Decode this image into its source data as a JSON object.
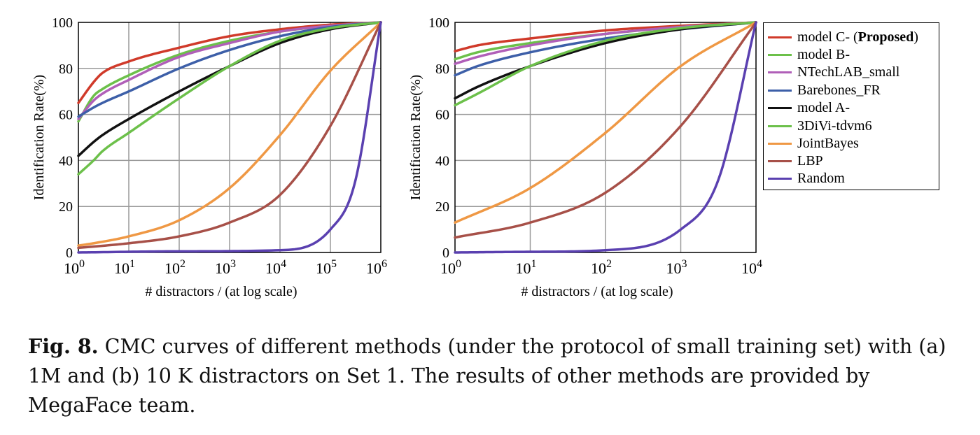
{
  "chart_data": [
    {
      "type": "line",
      "xscale": "log",
      "xlabel": "# distractors / (at log scale)",
      "ylabel": "Identification Rate(%)",
      "xlim": [
        1,
        1000000
      ],
      "ylim": [
        0,
        100
      ],
      "xticks": [
        "10^0",
        "10^1",
        "10^2",
        "10^3",
        "10^4",
        "10^5",
        "10^6"
      ],
      "yticks": [
        "0",
        "20",
        "40",
        "60",
        "80",
        "100"
      ],
      "grid": true,
      "series": [
        {
          "name": "model C- (Proposed)",
          "color": "#d03a2a",
          "points": [
            [
              1,
              65
            ],
            [
              2,
              74
            ],
            [
              3,
              78
            ],
            [
              10,
              83
            ],
            [
              100,
              89
            ],
            [
              1000,
              94
            ],
            [
              10000,
              97
            ],
            [
              100000,
              99
            ],
            [
              1000000,
              100
            ]
          ]
        },
        {
          "name": "model B-",
          "color": "#6cc04a",
          "points": [
            [
              1,
              57
            ],
            [
              2,
              68
            ],
            [
              3,
              71
            ],
            [
              10,
              77
            ],
            [
              100,
              86
            ],
            [
              1000,
              92
            ],
            [
              10000,
              96
            ],
            [
              100000,
              98.5
            ],
            [
              1000000,
              100
            ]
          ]
        },
        {
          "name": "NTechLAB_small",
          "color": "#b05fb8",
          "points": [
            [
              1,
              58
            ],
            [
              2,
              66
            ],
            [
              3,
              69
            ],
            [
              10,
              75
            ],
            [
              100,
              85
            ],
            [
              1000,
              91
            ],
            [
              10000,
              96
            ],
            [
              100000,
              98.5
            ],
            [
              1000000,
              100
            ]
          ]
        },
        {
          "name": "Barebones_FR",
          "color": "#3d5fa8",
          "points": [
            [
              1,
              59
            ],
            [
              2,
              63
            ],
            [
              3,
              65
            ],
            [
              10,
              70
            ],
            [
              100,
              80
            ],
            [
              1000,
              88
            ],
            [
              10000,
              94
            ],
            [
              100000,
              98
            ],
            [
              1000000,
              100
            ]
          ]
        },
        {
          "name": "model A-",
          "color": "#111111",
          "points": [
            [
              1,
              42
            ],
            [
              2,
              48
            ],
            [
              3,
              51
            ],
            [
              10,
              58
            ],
            [
              100,
              70
            ],
            [
              1000,
              81
            ],
            [
              10000,
              91
            ],
            [
              100000,
              97
            ],
            [
              1000000,
              100
            ]
          ]
        },
        {
          "name": "3DiVi-tdvm6",
          "color": "#6cc04a",
          "points": [
            [
              1,
              34
            ],
            [
              2,
              40
            ],
            [
              3,
              44
            ],
            [
              10,
              52
            ],
            [
              100,
              67
            ],
            [
              1000,
              81
            ],
            [
              10000,
              92
            ],
            [
              100000,
              97.5
            ],
            [
              1000000,
              100
            ]
          ]
        },
        {
          "name": "JointBayes",
          "color": "#ef9844",
          "points": [
            [
              1,
              3
            ],
            [
              2,
              4
            ],
            [
              10,
              7
            ],
            [
              100,
              14
            ],
            [
              1000,
              28
            ],
            [
              10000,
              51
            ],
            [
              100000,
              79
            ],
            [
              1000000,
              100
            ]
          ]
        },
        {
          "name": "LBP",
          "color": "#a75048",
          "points": [
            [
              1,
              2
            ],
            [
              10,
              4
            ],
            [
              100,
              7
            ],
            [
              1000,
              13
            ],
            [
              10000,
              25
            ],
            [
              100000,
              55
            ],
            [
              1000000,
              100
            ]
          ]
        },
        {
          "name": "Random",
          "color": "#5a40b0",
          "points": [
            [
              1,
              0
            ],
            [
              100,
              0.5
            ],
            [
              10000,
              1
            ],
            [
              100000,
              10
            ],
            [
              316228,
              31.6
            ],
            [
              1000000,
              100
            ]
          ]
        }
      ]
    },
    {
      "type": "line",
      "xscale": "log",
      "xlabel": "# distractors / (at log scale)",
      "ylabel": "Identification Rate(%)",
      "xlim": [
        1,
        10000
      ],
      "ylim": [
        0,
        100
      ],
      "xticks": [
        "10^0",
        "10^1",
        "10^2",
        "10^3",
        "10^4"
      ],
      "yticks": [
        "0",
        "20",
        "40",
        "60",
        "80",
        "100"
      ],
      "grid": true,
      "series": [
        {
          "name": "model C- (Proposed)",
          "color": "#d03a2a",
          "points": [
            [
              1,
              87.5
            ],
            [
              2,
              90
            ],
            [
              10,
              93
            ],
            [
              100,
              96.5
            ],
            [
              1000,
              98.5
            ],
            [
              10000,
              100
            ]
          ]
        },
        {
          "name": "model B-",
          "color": "#6cc04a",
          "points": [
            [
              1,
              84
            ],
            [
              2,
              87
            ],
            [
              10,
              91
            ],
            [
              100,
              95
            ],
            [
              1000,
              98
            ],
            [
              10000,
              100
            ]
          ]
        },
        {
          "name": "NTechLAB_small",
          "color": "#b05fb8",
          "points": [
            [
              1,
              82
            ],
            [
              2,
              85
            ],
            [
              10,
              90
            ],
            [
              100,
              95
            ],
            [
              1000,
              98
            ],
            [
              10000,
              100
            ]
          ]
        },
        {
          "name": "Barebones_FR",
          "color": "#3d5fa8",
          "points": [
            [
              1,
              77
            ],
            [
              2,
              81
            ],
            [
              10,
              87
            ],
            [
              100,
              93
            ],
            [
              1000,
              97
            ],
            [
              10000,
              100
            ]
          ]
        },
        {
          "name": "model A-",
          "color": "#111111",
          "points": [
            [
              1,
              67
            ],
            [
              2,
              72
            ],
            [
              10,
              81
            ],
            [
              100,
              91
            ],
            [
              1000,
              97
            ],
            [
              10000,
              100
            ]
          ]
        },
        {
          "name": "3DiVi-tdvm6",
          "color": "#6cc04a",
          "points": [
            [
              1,
              64
            ],
            [
              2,
              69
            ],
            [
              10,
              81
            ],
            [
              100,
              92
            ],
            [
              1000,
              97.5
            ],
            [
              10000,
              100
            ]
          ]
        },
        {
          "name": "JointBayes",
          "color": "#ef9844",
          "points": [
            [
              1,
              13
            ],
            [
              10,
              28
            ],
            [
              100,
              52
            ],
            [
              1000,
              81
            ],
            [
              10000,
              100
            ]
          ]
        },
        {
          "name": "LBP",
          "color": "#a75048",
          "points": [
            [
              1,
              6.5
            ],
            [
              10,
              13
            ],
            [
              100,
              26
            ],
            [
              1000,
              55
            ],
            [
              10000,
              100
            ]
          ]
        },
        {
          "name": "Random",
          "color": "#5a40b0",
          "points": [
            [
              1,
              0
            ],
            [
              10,
              0.3
            ],
            [
              100,
              1
            ],
            [
              1000,
              10
            ],
            [
              3162,
              31.6
            ],
            [
              10000,
              100
            ]
          ]
        }
      ]
    }
  ],
  "legend": {
    "items": [
      {
        "label": "model C- (",
        "bold": "Proposed",
        "suffix": ")",
        "color": "#d03a2a"
      },
      {
        "label": "model B-",
        "color": "#6cc04a"
      },
      {
        "label": "NTechLAB_small",
        "color": "#b05fb8"
      },
      {
        "label": "Barebones_FR",
        "color": "#3d5fa8"
      },
      {
        "label": "model A-",
        "color": "#111111"
      },
      {
        "label": "3DiVi-tdvm6",
        "color": "#6cc04a"
      },
      {
        "label": "JointBayes",
        "color": "#ef9844"
      },
      {
        "label": "LBP",
        "color": "#a75048"
      },
      {
        "label": "Random",
        "color": "#5a40b0"
      }
    ]
  },
  "caption": {
    "fig_label": "Fig. 8.",
    "text": "CMC curves of different methods (under the protocol of small training set) with (a) 1M and (b) 10 K distractors on Set 1. The results of other methods are provided by MegaFace team."
  }
}
